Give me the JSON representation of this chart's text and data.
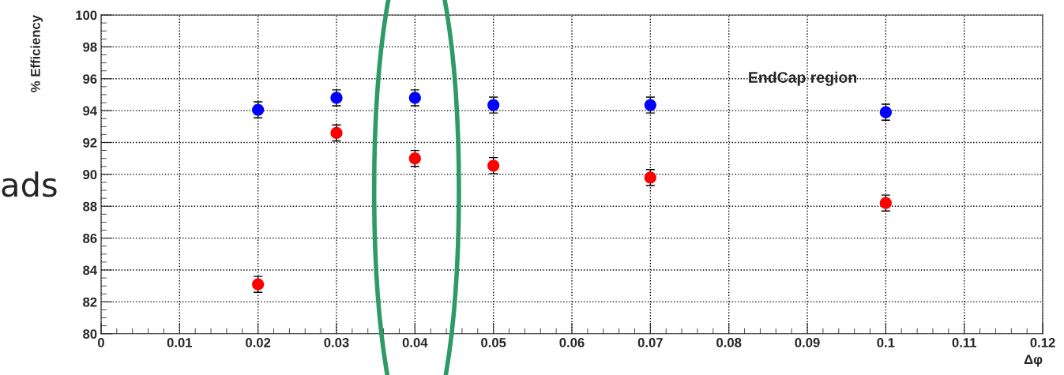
{
  "chart_data": {
    "type": "scatter",
    "ylabel": "% Efficiency",
    "xlabel": "Δφ",
    "annotations": [
      "EndCap region",
      "ads"
    ],
    "x": [
      0.02,
      0.03,
      0.04,
      0.05,
      0.07,
      0.1
    ],
    "series": [
      {
        "color": "#0000ff",
        "values": [
          94.05,
          94.8,
          94.8,
          94.35,
          94.35,
          93.9
        ],
        "errors": [
          0.5,
          0.5,
          0.5,
          0.5,
          0.5,
          0.5
        ]
      },
      {
        "color": "#ff0000",
        "values": [
          83.1,
          92.6,
          91.0,
          90.55,
          89.8,
          88.2
        ],
        "errors": [
          0.5,
          0.5,
          0.5,
          0.5,
          0.5,
          0.5
        ]
      }
    ],
    "xlim": [
      0,
      0.12
    ],
    "xticks": [
      0,
      0.01,
      0.02,
      0.03,
      0.04,
      0.05,
      0.06,
      0.07,
      0.08,
      0.09,
      0.1,
      0.11,
      0.12
    ],
    "ylim": [
      80,
      100
    ],
    "yticks": [
      80,
      82,
      84,
      86,
      88,
      90,
      92,
      94,
      96,
      98,
      100
    ],
    "grid": true,
    "marker": "circle",
    "legend": false
  }
}
